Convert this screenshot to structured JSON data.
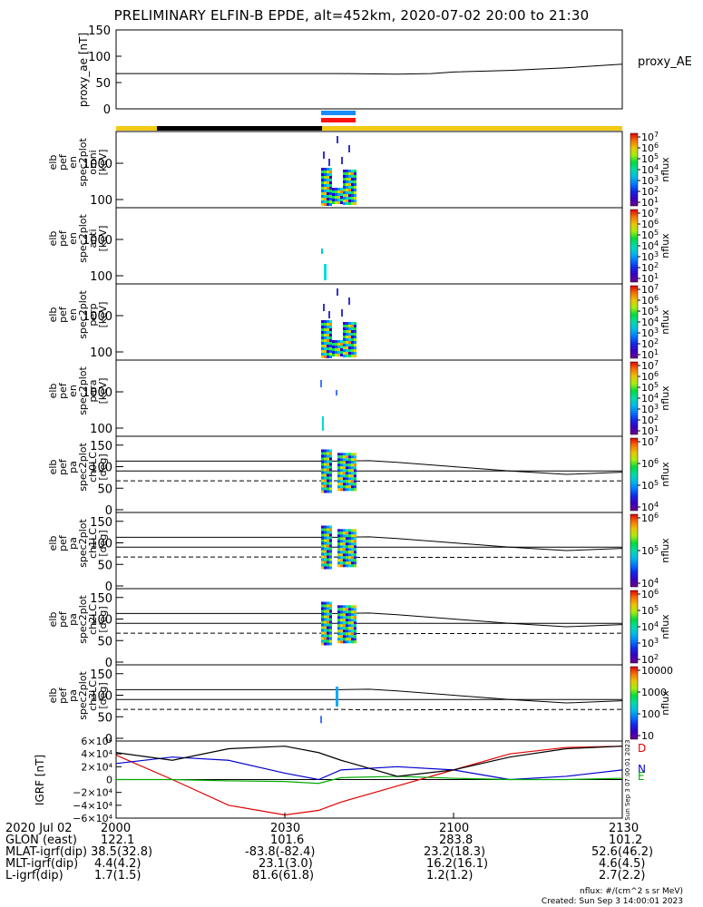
{
  "title": "PRELIMINARY ELFIN-B EPDE, alt=452km, 2020-07-02 20:00 to 21:30",
  "colors": {
    "gold": "#f2c913",
    "black": "#000000",
    "blue": "#1a8cff",
    "red": "#ff1111",
    "grf_d": "#e00000",
    "grf_n": "#0000cc",
    "grf_e": "#00aa00"
  },
  "chart_data": [
    {
      "id": "proxy_ae",
      "type": "line",
      "ylabel": "proxy_ae [nT]",
      "legend": "proxy_AE",
      "yticks": [
        "150",
        "100",
        "50",
        "0"
      ],
      "ylim": [
        0,
        150
      ],
      "x": [
        0,
        10,
        20,
        30,
        40,
        50,
        56,
        60,
        70,
        80,
        90
      ],
      "values": [
        67,
        67,
        67,
        67,
        67,
        66,
        67,
        70,
        73,
        78,
        85
      ]
    },
    {
      "id": "energy_panels",
      "type": "heatmap",
      "panels": [
        {
          "ylabel": [
            "elb",
            "pef",
            "en",
            "spec2plot",
            "omni",
            "[keV]"
          ],
          "yticks": [
            "1000",
            "100"
          ],
          "cbar_ticks": [
            "10^7",
            "10^6",
            "10^5",
            "10^4",
            "10^3",
            "10^2",
            "10^1"
          ],
          "cbar_label": "nflux"
        },
        {
          "ylabel": [
            "elb",
            "pef",
            "en",
            "spec2plot",
            "anti",
            "[keV]"
          ],
          "yticks": [
            "1000",
            "100"
          ],
          "cbar_ticks": [
            "10^7",
            "10^6",
            "10^5",
            "10^4",
            "10^3",
            "10^2",
            "10^1"
          ],
          "cbar_label": "nflux"
        },
        {
          "ylabel": [
            "elb",
            "pef",
            "en",
            "spec2plot",
            "perp",
            "[keV]"
          ],
          "yticks": [
            "1000",
            "100"
          ],
          "cbar_ticks": [
            "10^7",
            "10^6",
            "10^5",
            "10^4",
            "10^3",
            "10^2",
            "10^1"
          ],
          "cbar_label": "nflux"
        },
        {
          "ylabel": [
            "elb",
            "pef",
            "en",
            "spec2plot",
            "para",
            "[keV]"
          ],
          "yticks": [
            "1000",
            "100"
          ],
          "cbar_ticks": [
            "10^7",
            "10^6",
            "10^5",
            "10^4",
            "10^3",
            "10^2",
            "10^1"
          ],
          "cbar_label": "nflux"
        }
      ]
    },
    {
      "id": "pitch_panels",
      "type": "heatmap",
      "panels": [
        {
          "ylabel": [
            "elb",
            "pef",
            "pa",
            "spec2plot",
            "ch0LC",
            "[deg]"
          ],
          "yticks": [
            "150",
            "100",
            "50",
            "0"
          ],
          "cbar_ticks": [
            "10^7",
            "10^6",
            "10^5",
            "10^4"
          ],
          "cbar_label": "nflux"
        },
        {
          "ylabel": [
            "elb",
            "pef",
            "pa",
            "spec2plot",
            "ch1LC",
            "[deg]"
          ],
          "yticks": [
            "150",
            "100",
            "50",
            "0"
          ],
          "cbar_ticks": [
            "10^6",
            "10^5",
            "10^4"
          ],
          "cbar_label": "nflux"
        },
        {
          "ylabel": [
            "elb",
            "pef",
            "pa",
            "spec2plot",
            "ch2LC",
            "[deg]"
          ],
          "yticks": [
            "150",
            "100",
            "50",
            "0"
          ],
          "cbar_ticks": [
            "10^6",
            "10^5",
            "10^4",
            "10^3",
            "10^2"
          ],
          "cbar_label": "nflux"
        },
        {
          "ylabel": [
            "elb",
            "pef",
            "pa",
            "spec2plot",
            "ch3LC",
            "[deg]"
          ],
          "yticks": [
            "150",
            "100",
            "50",
            "0"
          ],
          "cbar_ticks": [
            "10000",
            "1000",
            "100",
            "10"
          ],
          "cbar_label": "nflux"
        }
      ]
    },
    {
      "id": "igrf",
      "type": "line",
      "ylabel": "IGRF [nT]",
      "yticks": [
        "6×10⁴",
        "4×10⁴",
        "2×10⁴",
        "0",
        "−2×10⁴",
        "−4×10⁴",
        "−6×10⁴"
      ],
      "ylim": [
        -60000,
        60000
      ],
      "x": [
        0,
        10,
        20,
        30,
        36,
        40,
        50,
        60,
        70,
        80,
        90
      ],
      "series": [
        {
          "name": "D",
          "values": [
            38000,
            0,
            -40000,
            -55000,
            -48000,
            -35000,
            -10000,
            15000,
            40000,
            50000,
            52000
          ]
        },
        {
          "name": "N",
          "values": [
            25000,
            35000,
            30000,
            10000,
            0,
            15000,
            20000,
            15000,
            0,
            5000,
            15000
          ]
        },
        {
          "name": "E",
          "values": [
            0,
            0,
            -2000,
            -3000,
            -6000,
            3000,
            5000,
            2000,
            0,
            0,
            2000
          ]
        },
        {
          "name": "",
          "values": [
            42000,
            30000,
            48000,
            52000,
            42000,
            30000,
            5000,
            15000,
            35000,
            48000,
            52000
          ]
        }
      ],
      "side_note": "Sun Sep 3 07:00:01 2023"
    }
  ],
  "footer": {
    "rows": [
      {
        "label": "2020 Jul 02",
        "values": [
          "2000",
          "2030",
          "2100",
          "2130"
        ]
      },
      {
        "label": "GLON (east)",
        "values": [
          "122.1",
          "101.6",
          "283.8",
          "101.2"
        ]
      },
      {
        "label": "MLAT-igrf(dip)",
        "values": [
          "38.5(32.8)",
          "-83.8(-82.4)",
          "23.2(18.3)",
          "52.6(46.2)"
        ]
      },
      {
        "label": "MLT-igrf(dip)",
        "values": [
          "4.4(4.2)",
          "23.1(3.0)",
          "16.2(16.1)",
          "4.6(4.5)"
        ]
      },
      {
        "label": "L-igrf(dip)",
        "values": [
          "1.7(1.5)",
          "81.6(61.8)",
          "1.2(1.2)",
          "2.7(2.2)"
        ]
      }
    ],
    "nflux_units": "nflux: #/(cm^2 s sr MeV)",
    "created": "Created: Sun Sep  3 14:00:01 2023"
  }
}
